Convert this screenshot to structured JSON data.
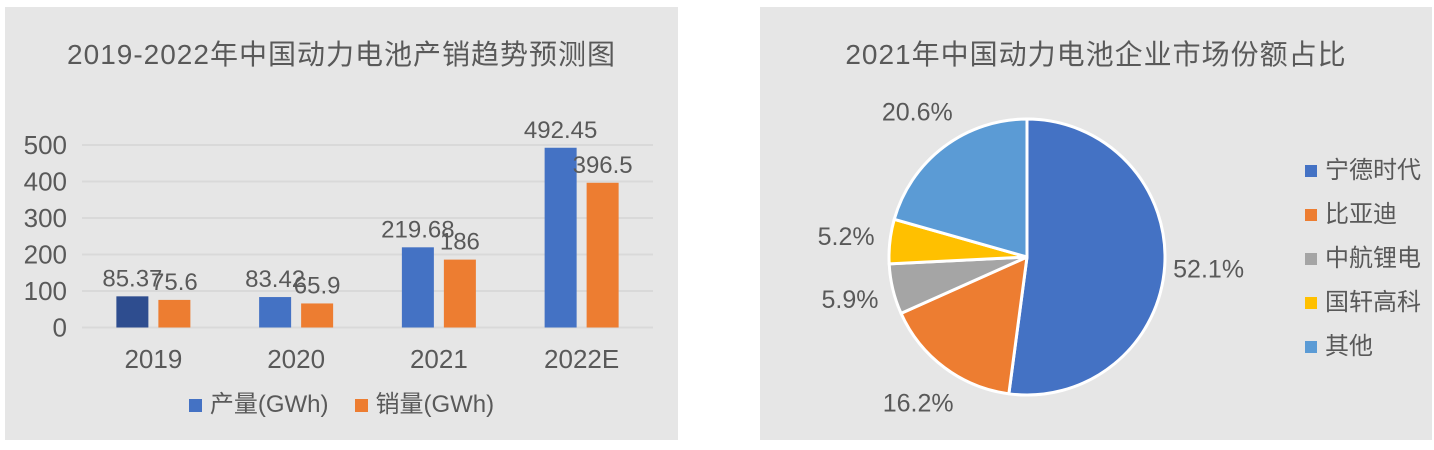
{
  "page": {
    "background": "#FFFFFF",
    "panel_background": "#E6E6E6",
    "text_color": "#595959",
    "gridline_color": "#D9D9D9",
    "slice_border_color": "#FFFFFF"
  },
  "chart_data": [
    {
      "type": "bar",
      "title": "2019-2022年中国动力电池产销趋势预测图",
      "categories": [
        "2019",
        "2020",
        "2021",
        "2022E"
      ],
      "series": [
        {
          "name": "产量(GWh)",
          "color": "#4472C4",
          "values": [
            85.37,
            83.42,
            219.68,
            492.45
          ],
          "point_colors": {
            "0": "#2E4D8F"
          }
        },
        {
          "name": "销量(GWh)",
          "color": "#ED7D31",
          "values": [
            75.6,
            65.9,
            186,
            396.5
          ]
        }
      ],
      "xlabel": "",
      "ylabel": "",
      "ylim": [
        0,
        500
      ],
      "y_ticks": [
        0,
        100,
        200,
        300,
        400,
        500
      ],
      "grid": true,
      "data_labels": true,
      "legend_position": "bottom"
    },
    {
      "type": "pie",
      "title": "2021年中国动力电池企业市场份额占比",
      "slices": [
        {
          "label": "宁德时代",
          "value": 52.1,
          "display": "52.1%",
          "color": "#4472C4"
        },
        {
          "label": "比亚迪",
          "value": 16.2,
          "display": "16.2%",
          "color": "#ED7D31"
        },
        {
          "label": "中航锂电",
          "value": 5.9,
          "display": "5.9%",
          "color": "#A5A5A5"
        },
        {
          "label": "国轩高科",
          "value": 5.2,
          "display": "5.2%",
          "color": "#FFC000"
        },
        {
          "label": "其他",
          "value": 20.6,
          "display": "20.6%",
          "color": "#5B9BD5"
        }
      ],
      "start_angle_deg": 0,
      "direction": "clockwise",
      "legend_position": "right"
    }
  ]
}
